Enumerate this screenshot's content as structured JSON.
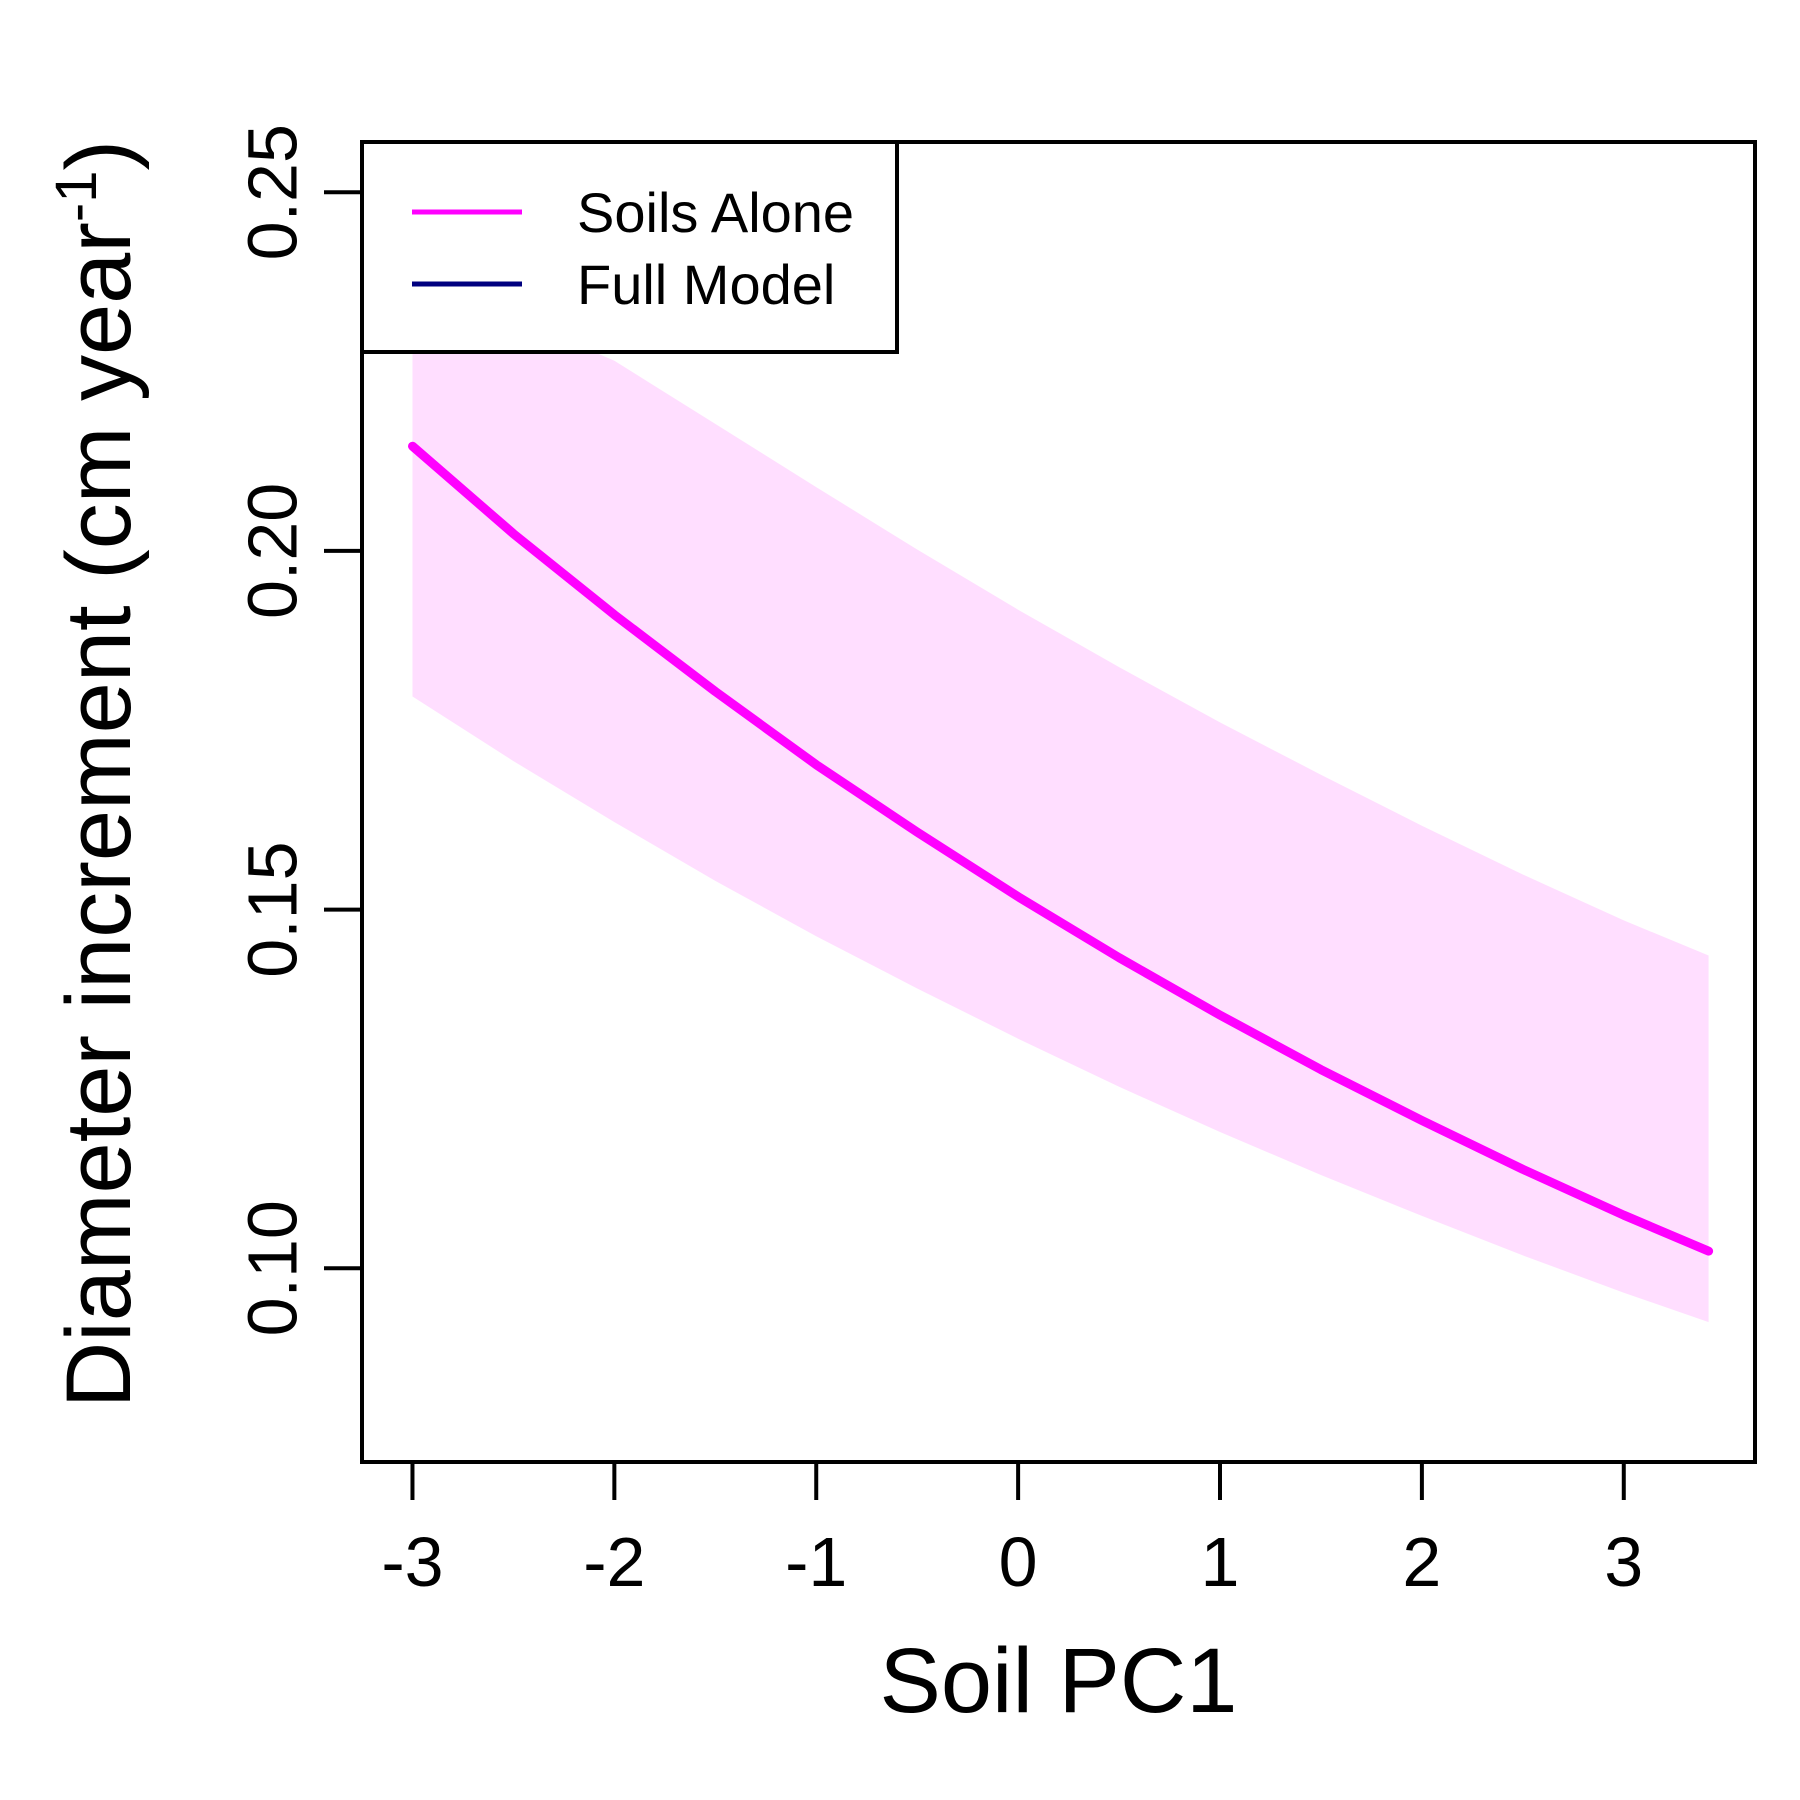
{
  "chart_data": {
    "type": "line",
    "xlabel": "Soil PC1",
    "ylabel": "Diameter increment (cm year",
    "ylabel_superscript": "-1",
    "ylabel_suffix": ")",
    "xlim": [
      -3.25,
      3.65
    ],
    "ylim": [
      0.073,
      0.257
    ],
    "xticks": [
      -3,
      -2,
      -1,
      0,
      1,
      2,
      3
    ],
    "xtick_labels": [
      "-3",
      "-2",
      "-1",
      "0",
      "1",
      "2",
      "3"
    ],
    "yticks": [
      0.1,
      0.15,
      0.2,
      0.25
    ],
    "ytick_labels": [
      "0.10",
      "0.15",
      "0.20",
      "0.25"
    ],
    "grid": false,
    "legend_position": "top-left",
    "series": [
      {
        "name": "Soils Alone",
        "color": "#FF00FF",
        "x": [
          -3.0,
          -2.5,
          -2.0,
          -1.5,
          -1.0,
          -0.5,
          0.0,
          0.5,
          1.0,
          1.5,
          2.0,
          2.5,
          3.0,
          3.42
        ],
        "y": [
          0.2146,
          0.2024,
          0.1911,
          0.1804,
          0.1702,
          0.1608,
          0.1518,
          0.1433,
          0.1353,
          0.1277,
          0.1206,
          0.1138,
          0.1074,
          0.1024
        ],
        "ci_lower": [
          0.1797,
          0.1707,
          0.1622,
          0.154,
          0.1463,
          0.139,
          0.132,
          0.1253,
          0.119,
          0.113,
          0.1073,
          0.1018,
          0.0966,
          0.0925
        ],
        "ci_upper": [
          0.229,
          0.2326,
          0.2265,
          0.2177,
          0.2089,
          0.2002,
          0.1918,
          0.1838,
          0.1761,
          0.1688,
          0.1617,
          0.1549,
          0.1485,
          0.1436
        ]
      },
      {
        "name": "Full Model",
        "color": "#00007F",
        "x": [],
        "y": []
      }
    ]
  }
}
